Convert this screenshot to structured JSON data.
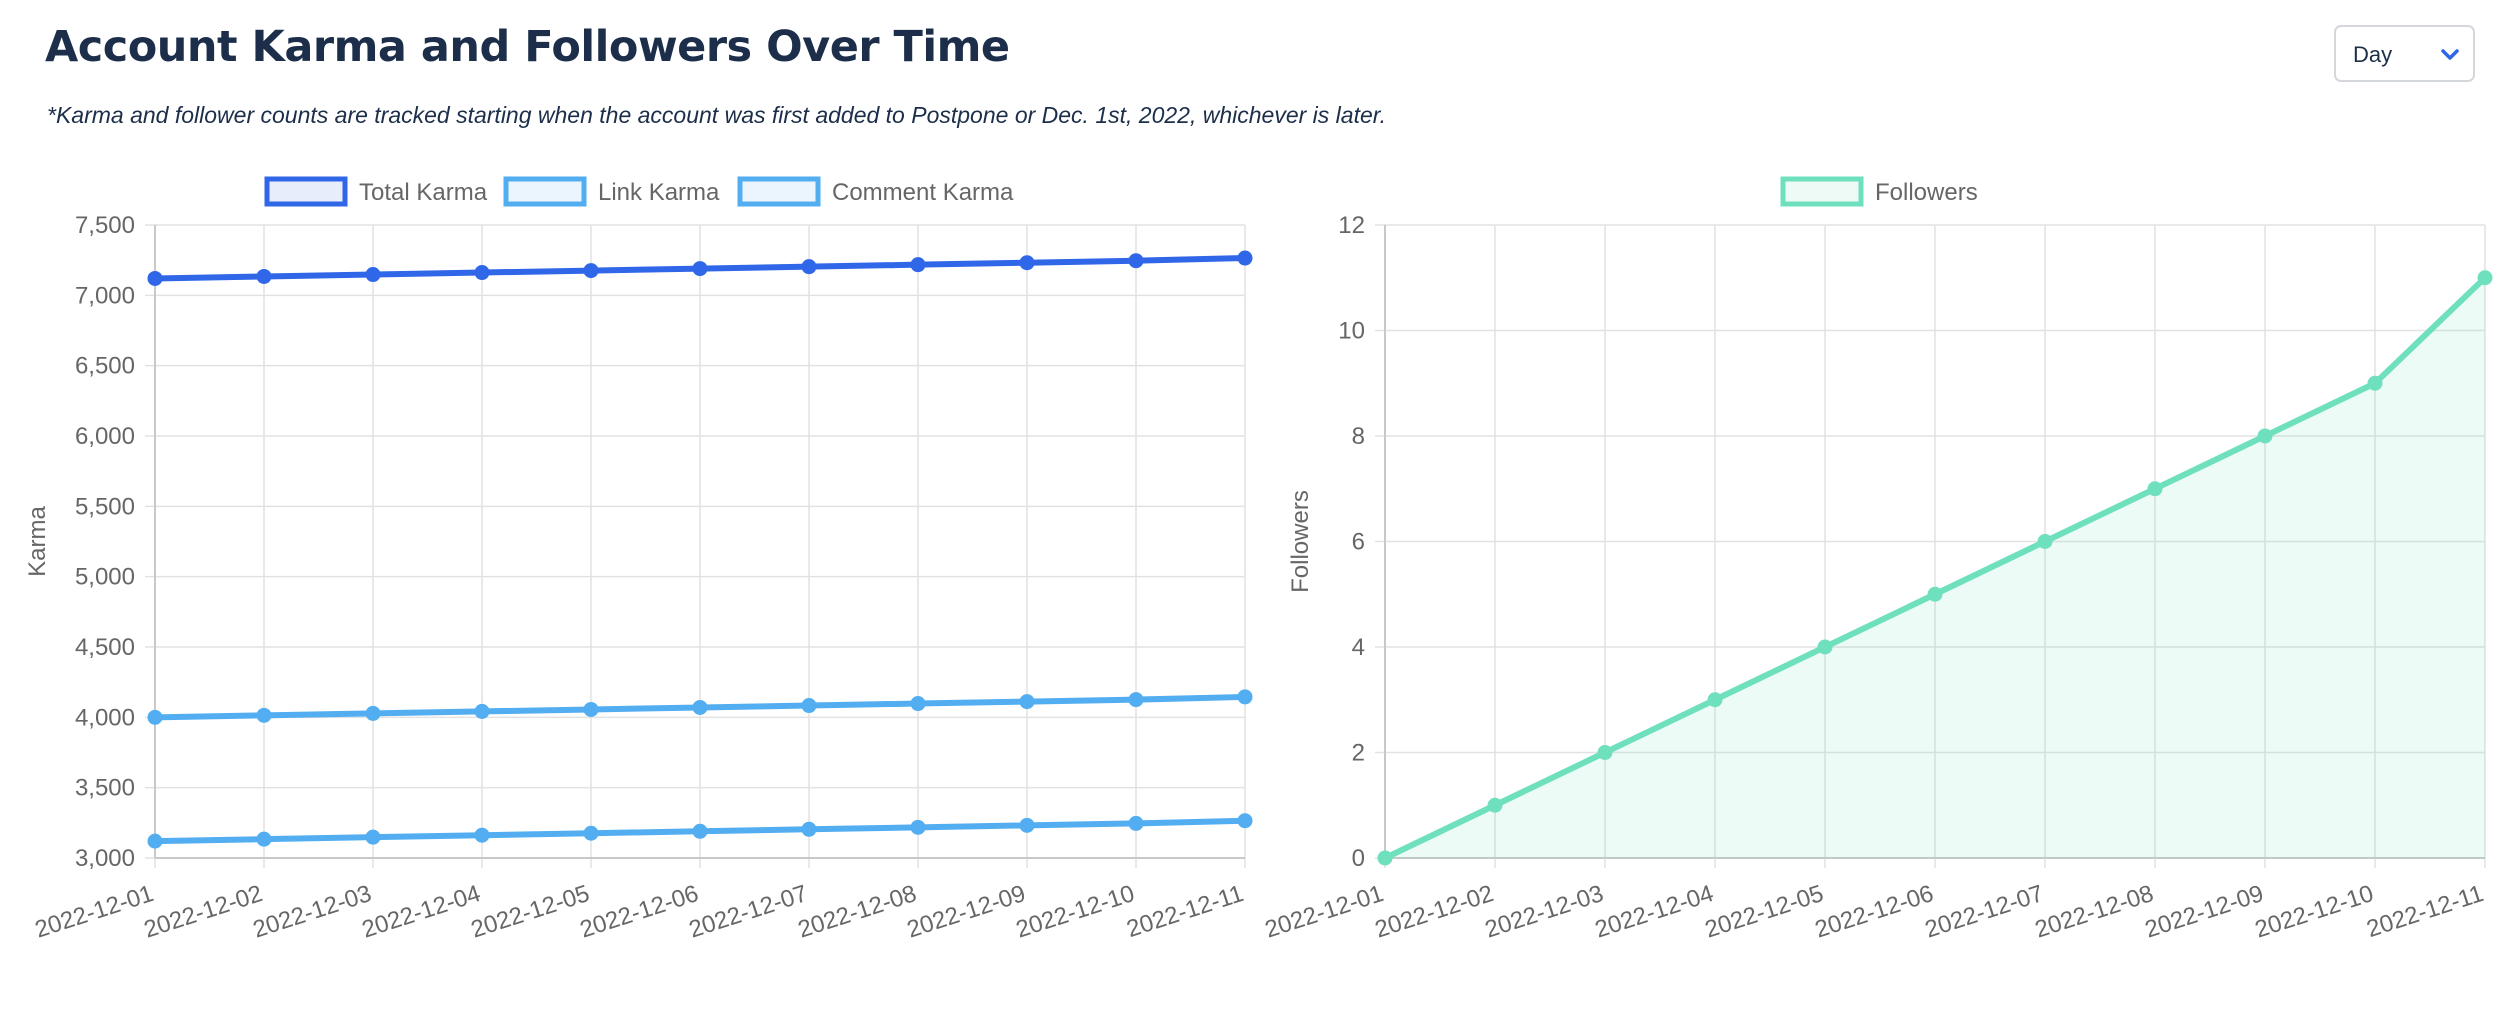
{
  "header": {
    "title": "Account Karma and Followers Over Time",
    "subtitle": "*Karma and follower counts are tracked starting when the account was first added to Postpone or Dec. 1st, 2022, whichever is later."
  },
  "range_select": {
    "value": "Day",
    "icon": "chevron-down-icon"
  },
  "colors": {
    "title": "#1c2e4a",
    "accent": "#3066e8",
    "total_karma": "#3066e8",
    "link_karma": "#52aef0",
    "comment_karma": "#52aef0",
    "followers": "#6fe0bd",
    "grid": "#e2e2e2",
    "tick_text": "#666666"
  },
  "chart_data": [
    {
      "type": "line",
      "title": "",
      "xlabel": "",
      "ylabel": "Karma",
      "x": [
        "2022-12-01",
        "2022-12-02",
        "2022-12-03",
        "2022-12-04",
        "2022-12-05",
        "2022-12-06",
        "2022-12-07",
        "2022-12-08",
        "2022-12-09",
        "2022-12-10",
        "2022-12-11"
      ],
      "ylim": [
        3000,
        7500
      ],
      "yticks": [
        3000,
        3500,
        4000,
        4500,
        5000,
        5500,
        6000,
        6500,
        7000,
        7500
      ],
      "grid": true,
      "legend": "top-center",
      "series": [
        {
          "name": "Total Karma",
          "values": [
            7120,
            7134,
            7148,
            7162,
            7176,
            7190,
            7204,
            7218,
            7232,
            7246,
            7265
          ]
        },
        {
          "name": "Link Karma",
          "values": [
            4000,
            4014,
            4028,
            4042,
            4056,
            4070,
            4084,
            4098,
            4112,
            4126,
            4145
          ]
        },
        {
          "name": "Comment Karma",
          "values": [
            3120,
            3134,
            3148,
            3162,
            3176,
            3190,
            3204,
            3218,
            3232,
            3246,
            3265
          ]
        }
      ]
    },
    {
      "type": "area",
      "title": "",
      "xlabel": "",
      "ylabel": "Followers",
      "x": [
        "2022-12-01",
        "2022-12-02",
        "2022-12-03",
        "2022-12-04",
        "2022-12-05",
        "2022-12-06",
        "2022-12-07",
        "2022-12-08",
        "2022-12-09",
        "2022-12-10",
        "2022-12-11"
      ],
      "ylim": [
        0,
        12
      ],
      "yticks": [
        0,
        2,
        4,
        6,
        8,
        10,
        12
      ],
      "grid": true,
      "legend": "top-center",
      "series": [
        {
          "name": "Followers",
          "values": [
            0,
            1,
            2,
            3,
            4,
            5,
            6,
            7,
            8,
            9,
            11
          ]
        }
      ]
    }
  ]
}
